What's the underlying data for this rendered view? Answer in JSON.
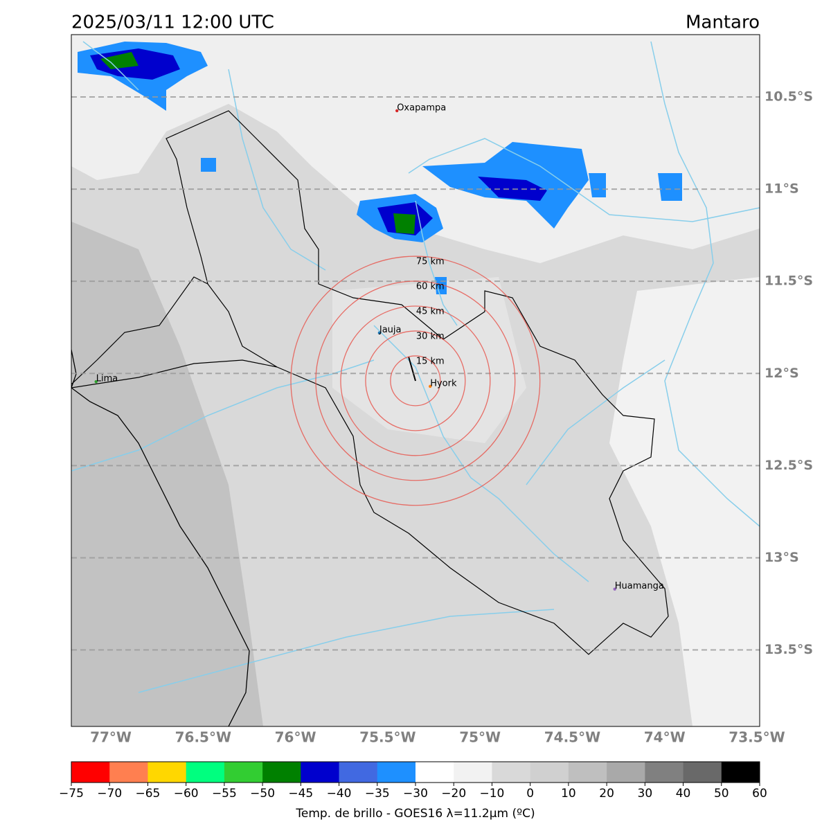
{
  "title": "2025/03/11 12:00 UTC",
  "region": "Mantaro",
  "map": {
    "lon_range": [
      -77.214,
      -73.485
    ],
    "lat_range": [
      -13.915,
      -10.162
    ],
    "lat_lines": [
      {
        "value": -10.5,
        "label": "10.5°S"
      },
      {
        "value": -11,
        "label": "11°S"
      },
      {
        "value": -11.5,
        "label": "11.5°S"
      },
      {
        "value": -12,
        "label": "12°S"
      },
      {
        "value": -12.5,
        "label": "12.5°S"
      },
      {
        "value": -13,
        "label": "13°S"
      },
      {
        "value": -13.5,
        "label": "13.5°S"
      }
    ],
    "lon_ticks": [
      {
        "value": -77,
        "label": "77°W"
      },
      {
        "value": -76.5,
        "label": "76.5°W"
      },
      {
        "value": -76,
        "label": "76°W"
      },
      {
        "value": -75.5,
        "label": "75.5°W"
      },
      {
        "value": -75,
        "label": "75°W"
      },
      {
        "value": -74.5,
        "label": "74.5°W"
      },
      {
        "value": -74,
        "label": "74°W"
      },
      {
        "value": -73.5,
        "label": "73.5°W"
      }
    ],
    "cities": [
      {
        "name": "Oxapampa",
        "lon": -75.45,
        "lat": -10.575,
        "color": "#d62728"
      },
      {
        "name": "Jauja",
        "lon": -75.545,
        "lat": -11.78,
        "color": "#1f77b4"
      },
      {
        "name": "Lima",
        "lon": -77.08,
        "lat": -12.045,
        "color": "#2ca02c"
      },
      {
        "name": "Hyork",
        "lon": -75.27,
        "lat": -12.07,
        "color": "#ff7f0e"
      },
      {
        "name": "Huamanga",
        "lon": -74.27,
        "lat": -13.17,
        "color": "#9467bd"
      }
    ],
    "ring_center": {
      "lon": -75.35,
      "lat": -12.04
    },
    "rings": [
      {
        "value": 15,
        "label": "15 km"
      },
      {
        "value": 30,
        "label": "30 km"
      },
      {
        "value": 45,
        "label": "45 km"
      },
      {
        "value": 60,
        "label": "60 km"
      },
      {
        "value": 75,
        "label": "75 km"
      }
    ]
  },
  "colorbar": {
    "label": "Temp. de brillo - GOES16 λ=11.2μm (ºC)",
    "ticks": [
      {
        "value": -75,
        "label": "−75"
      },
      {
        "value": -70,
        "label": "−70"
      },
      {
        "value": -65,
        "label": "−65"
      },
      {
        "value": -60,
        "label": "−60"
      },
      {
        "value": -55,
        "label": "−55"
      },
      {
        "value": -50,
        "label": "−50"
      },
      {
        "value": -45,
        "label": "−45"
      },
      {
        "value": -40,
        "label": "−40"
      },
      {
        "value": -35,
        "label": "−35"
      },
      {
        "value": -30,
        "label": "−30"
      },
      {
        "value": -20,
        "label": "−20"
      },
      {
        "value": -10,
        "label": "−10"
      },
      0,
      10,
      20,
      30,
      40,
      50,
      60
    ],
    "colors": [
      "#ff0000",
      "#ff7f50",
      "#ffd700",
      "#00ff7f",
      "#32cd32",
      "#008000",
      "#0000cd",
      "#4169e1",
      "#1e90ff",
      "#ffffff",
      "#f2f2f2",
      "#d9d9d9",
      "#d0d0d0",
      "#bfbfbf",
      "#a9a9a9",
      "#808080",
      "#696969",
      "#000000"
    ]
  }
}
